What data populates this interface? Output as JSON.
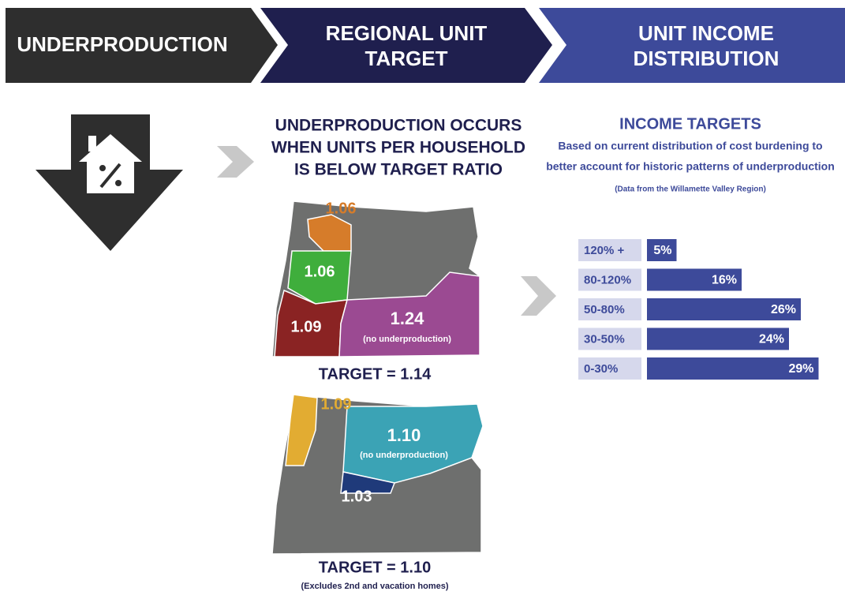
{
  "header": {
    "steps": [
      [
        "UNDERPRODUCTION"
      ],
      [
        "REGIONAL UNIT",
        "TARGET"
      ],
      [
        "UNIT INCOME",
        "DISTRIBUTION"
      ]
    ]
  },
  "middle": {
    "heading": [
      "UNDERPRODUCTION OCCURS",
      "WHEN UNITS PER HOUSEHOLD",
      "IS BELOW TARGET RATIO"
    ],
    "map1": {
      "labels": [
        "1.06",
        "1.06",
        "1.09",
        "1.24"
      ],
      "note": "(no underproduction)",
      "target": "TARGET = 1.14"
    },
    "map2": {
      "labels": [
        "1.09",
        "1.10",
        "1.03"
      ],
      "note": "(no underproduction)",
      "target": "TARGET = 1.10",
      "footnote": "(Excludes 2nd and vacation homes)"
    }
  },
  "income": {
    "title": "INCOME TARGETS",
    "subtitle": [
      "Based on current distribution of cost burdening to",
      "better account for historic patterns of underproduction"
    ],
    "note": "(Data from the Willamette Valley Region)"
  },
  "chart_data": {
    "type": "bar",
    "categories": [
      "120% +",
      "80-120%",
      "50-80%",
      "30-50%",
      "0-30%"
    ],
    "values": [
      5,
      16,
      26,
      24,
      29
    ],
    "value_labels": [
      "5%",
      "16%",
      "26%",
      "24%",
      "29%"
    ],
    "color": "#3d4a9a"
  }
}
